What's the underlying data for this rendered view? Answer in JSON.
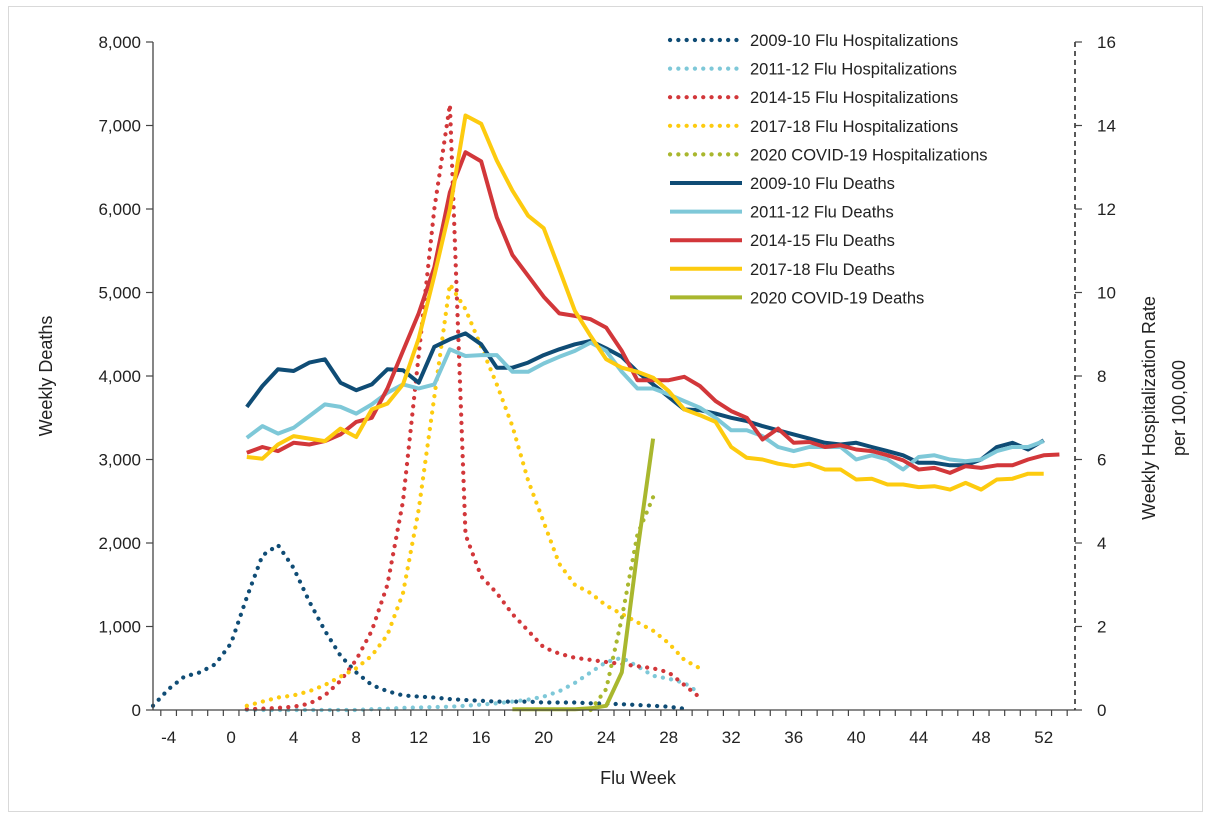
{
  "chart_data": {
    "type": "line",
    "title": "",
    "xlabel": "Flu Week",
    "ylabel": "Weekly Deaths",
    "y2label_line1": "Weekly Hospitalization Rate",
    "y2label_line2": "per 100,000",
    "xlim": [
      -5,
      54
    ],
    "ylim": [
      0,
      8000
    ],
    "y2lim": [
      0,
      16
    ],
    "x_ticks": [
      -4,
      0,
      4,
      8,
      12,
      16,
      20,
      24,
      28,
      32,
      36,
      40,
      44,
      48,
      52
    ],
    "y_ticks": [
      0,
      1000,
      2000,
      3000,
      4000,
      5000,
      6000,
      7000,
      8000
    ],
    "y_tick_labels": [
      "0",
      "1,000",
      "2,000",
      "3,000",
      "4,000",
      "5,000",
      "6,000",
      "7,000",
      "8,000"
    ],
    "y2_ticks": [
      0,
      2,
      4,
      6,
      8,
      10,
      12,
      14,
      16
    ],
    "legend_position": "top-right",
    "series": [
      {
        "name": "2009-10 Flu Hospitalizations",
        "axis": "right",
        "style": "dotted",
        "color": "#0f4c75",
        "x": [
          -5,
          -4,
          -3,
          -2,
          -1,
          0,
          1,
          2,
          3,
          4,
          5,
          6,
          7,
          8,
          9,
          10,
          11,
          12,
          13,
          14,
          15,
          16,
          17,
          18,
          19,
          20,
          21,
          22,
          23,
          24,
          25,
          26,
          27,
          28,
          29
        ],
        "y": [
          0.1,
          0.5,
          0.8,
          0.9,
          1.1,
          1.6,
          2.7,
          3.7,
          3.95,
          3.4,
          2.6,
          1.9,
          1.3,
          0.9,
          0.6,
          0.45,
          0.35,
          0.32,
          0.3,
          0.26,
          0.24,
          0.22,
          0.2,
          0.2,
          0.2,
          0.18,
          0.18,
          0.18,
          0.16,
          0.15,
          0.14,
          0.12,
          0.1,
          0.08,
          0.03
        ]
      },
      {
        "name": "2011-12 Flu Hospitalizations",
        "axis": "right",
        "style": "dotted",
        "color": "#7ec8d8",
        "x": [
          1,
          2,
          3,
          4,
          5,
          6,
          7,
          8,
          9,
          10,
          11,
          12,
          13,
          14,
          15,
          16,
          17,
          18,
          19,
          20,
          21,
          22,
          23,
          24,
          25,
          26,
          27,
          28,
          29,
          30
        ],
        "y": [
          0,
          0,
          0,
          0,
          0,
          0,
          0,
          0,
          0.02,
          0.03,
          0.05,
          0.06,
          0.07,
          0.08,
          0.1,
          0.13,
          0.16,
          0.2,
          0.25,
          0.32,
          0.45,
          0.65,
          0.9,
          1.15,
          1.25,
          1.05,
          0.82,
          0.75,
          0.65,
          0.4
        ]
      },
      {
        "name": "2014-15 Flu Hospitalizations",
        "axis": "right",
        "style": "dotted",
        "color": "#d2373a",
        "x": [
          1,
          2,
          3,
          4,
          5,
          6,
          7,
          8,
          9,
          10,
          11,
          12,
          13,
          14,
          15,
          16,
          17,
          18,
          19,
          20,
          21,
          22,
          23,
          24,
          25,
          26,
          27,
          28,
          29,
          30
        ],
        "y": [
          0.02,
          0.03,
          0.05,
          0.08,
          0.15,
          0.35,
          0.7,
          1.2,
          1.9,
          3.0,
          5.0,
          8.5,
          12.0,
          14.5,
          4.2,
          3.2,
          2.8,
          2.3,
          1.9,
          1.5,
          1.35,
          1.25,
          1.2,
          1.15,
          1.1,
          1.05,
          1.0,
          0.9,
          0.6,
          0.3
        ]
      },
      {
        "name": "2017-18 Flu Hospitalizations",
        "axis": "right",
        "style": "dotted",
        "color": "#fdcb0f",
        "x": [
          1,
          2,
          3,
          4,
          5,
          6,
          7,
          8,
          9,
          10,
          11,
          12,
          13,
          14,
          15,
          16,
          17,
          18,
          19,
          20,
          21,
          22,
          23,
          24,
          25,
          26,
          27,
          28,
          29,
          30
        ],
        "y": [
          0.1,
          0.2,
          0.3,
          0.35,
          0.45,
          0.6,
          0.8,
          1.0,
          1.3,
          1.8,
          2.8,
          4.8,
          7.5,
          10.2,
          9.6,
          8.7,
          7.8,
          6.8,
          5.5,
          4.5,
          3.5,
          3.0,
          2.8,
          2.5,
          2.3,
          2.1,
          1.9,
          1.6,
          1.2,
          1.0
        ]
      },
      {
        "name": "2020 COVID-19 Hospitalizations",
        "axis": "right",
        "style": "dotted",
        "color": "#a9b72e",
        "x": [
          23,
          24,
          25,
          26,
          27
        ],
        "y": [
          0.0,
          0.5,
          2.2,
          4.2,
          5.1
        ]
      },
      {
        "name": "2009-10 Flu Deaths",
        "axis": "left",
        "style": "solid",
        "color": "#0f4c75",
        "x": [
          1,
          2,
          3,
          4,
          5,
          6,
          7,
          8,
          9,
          10,
          11,
          12,
          13,
          14,
          15,
          16,
          17,
          18,
          19,
          20,
          21,
          22,
          23,
          24,
          25,
          26,
          27,
          28,
          29,
          30,
          31,
          32,
          33,
          34,
          35,
          36,
          37,
          38,
          39,
          40,
          41,
          42,
          43,
          44,
          45,
          46,
          47,
          48,
          49,
          50,
          51,
          52
        ],
        "y": [
          3630,
          3880,
          4080,
          4060,
          4160,
          4200,
          3920,
          3830,
          3900,
          4080,
          4070,
          3920,
          4350,
          4440,
          4510,
          4380,
          4100,
          4100,
          4160,
          4250,
          4320,
          4380,
          4420,
          4330,
          4230,
          4050,
          3900,
          3750,
          3600,
          3590,
          3550,
          3500,
          3460,
          3400,
          3350,
          3300,
          3250,
          3200,
          3180,
          3200,
          3150,
          3100,
          3050,
          2960,
          2960,
          2930,
          2930,
          3000,
          3150,
          3200,
          3120,
          3230
        ]
      },
      {
        "name": "2011-12 Flu Deaths",
        "axis": "left",
        "style": "solid",
        "color": "#7ec8d8",
        "x": [
          1,
          2,
          3,
          4,
          5,
          6,
          7,
          8,
          9,
          10,
          11,
          12,
          13,
          14,
          15,
          16,
          17,
          18,
          19,
          20,
          21,
          22,
          23,
          24,
          25,
          26,
          27,
          28,
          29,
          30,
          31,
          32,
          33,
          34,
          35,
          36,
          37,
          38,
          39,
          40,
          41,
          42,
          43,
          44,
          45,
          46,
          47,
          48,
          49,
          50,
          51,
          52
        ],
        "y": [
          3260,
          3400,
          3310,
          3380,
          3520,
          3660,
          3630,
          3550,
          3660,
          3800,
          3900,
          3850,
          3900,
          4320,
          4240,
          4250,
          4250,
          4050,
          4050,
          4150,
          4230,
          4300,
          4400,
          4300,
          4050,
          3850,
          3850,
          3780,
          3700,
          3620,
          3500,
          3350,
          3350,
          3280,
          3150,
          3100,
          3150,
          3150,
          3150,
          3000,
          3050,
          3000,
          2880,
          3030,
          3050,
          3000,
          2980,
          3000,
          3100,
          3150,
          3150,
          3220
        ]
      },
      {
        "name": "2014-15 Flu Deaths",
        "axis": "left",
        "style": "solid",
        "color": "#d2373a",
        "x": [
          1,
          2,
          3,
          4,
          5,
          6,
          7,
          8,
          9,
          10,
          11,
          12,
          13,
          14,
          15,
          16,
          17,
          18,
          19,
          20,
          21,
          22,
          23,
          24,
          25,
          26,
          27,
          28,
          29,
          30,
          31,
          32,
          33,
          34,
          35,
          36,
          37,
          38,
          39,
          40,
          41,
          42,
          43,
          44,
          45,
          46,
          47,
          48,
          49,
          50,
          51,
          52,
          53
        ],
        "y": [
          3080,
          3150,
          3100,
          3200,
          3180,
          3220,
          3300,
          3450,
          3500,
          3850,
          4300,
          4750,
          5300,
          6200,
          6680,
          6570,
          5900,
          5450,
          5200,
          4950,
          4750,
          4720,
          4680,
          4580,
          4300,
          3950,
          3950,
          3950,
          3990,
          3880,
          3700,
          3580,
          3500,
          3240,
          3370,
          3200,
          3210,
          3150,
          3170,
          3120,
          3100,
          3050,
          2990,
          2880,
          2900,
          2840,
          2920,
          2900,
          2930,
          2930,
          3000,
          3050,
          3060
        ]
      },
      {
        "name": "2017-18 Flu Deaths",
        "axis": "left",
        "style": "solid",
        "color": "#fdcb0f",
        "x": [
          1,
          2,
          3,
          4,
          5,
          6,
          7,
          8,
          9,
          10,
          11,
          12,
          13,
          14,
          15,
          16,
          17,
          18,
          19,
          20,
          21,
          22,
          23,
          24,
          25,
          26,
          27,
          28,
          29,
          30,
          31,
          32,
          33,
          34,
          35,
          36,
          37,
          38,
          39,
          40,
          41,
          42,
          43,
          44,
          45,
          46,
          47,
          48,
          49,
          50,
          51,
          52
        ],
        "y": [
          3030,
          3010,
          3180,
          3280,
          3250,
          3220,
          3370,
          3270,
          3600,
          3670,
          3900,
          4450,
          5200,
          6000,
          7120,
          7020,
          6580,
          6220,
          5920,
          5770,
          5280,
          4780,
          4480,
          4200,
          4100,
          4050,
          3980,
          3820,
          3600,
          3530,
          3450,
          3150,
          3020,
          3000,
          2950,
          2920,
          2950,
          2880,
          2880,
          2760,
          2770,
          2700,
          2700,
          2670,
          2680,
          2640,
          2720,
          2640,
          2760,
          2770,
          2830,
          2830
        ]
      },
      {
        "name": "2020 COVID-19 Deaths",
        "axis": "left",
        "style": "solid",
        "color": "#a9b72e",
        "x": [
          18,
          19,
          20,
          21,
          22,
          23,
          24,
          25,
          26,
          27
        ],
        "y": [
          10,
          10,
          10,
          10,
          10,
          20,
          50,
          450,
          1900,
          3250
        ]
      }
    ]
  }
}
